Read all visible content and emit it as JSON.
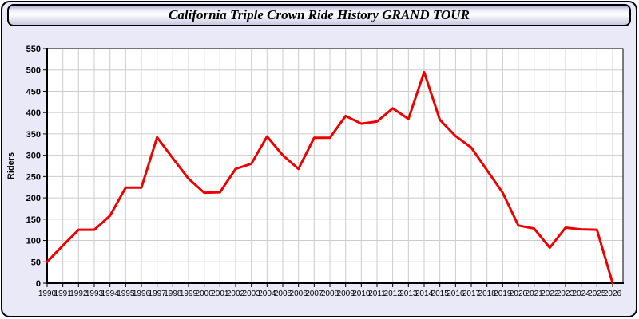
{
  "window": {
    "title": "California Triple Crown Ride History GRAND TOUR"
  },
  "colors": {
    "line": "#ee0000",
    "card_background": "#e9e9f7",
    "plot_background": "#ffffff",
    "gridline": "#cccccc",
    "axis": "#000000"
  },
  "chart_data": {
    "type": "line",
    "title": "California Triple Crown Ride History GRAND TOUR",
    "xlabel": "",
    "ylabel": "Riders",
    "ylim": [
      0,
      550
    ],
    "ytick_step": 50,
    "grid": true,
    "legend": "none",
    "x": [
      1990,
      1991,
      1992,
      1993,
      1994,
      1995,
      1996,
      1997,
      1998,
      1999,
      2000,
      2001,
      2002,
      2003,
      2004,
      2005,
      2006,
      2007,
      2008,
      2009,
      2010,
      2011,
      2012,
      2013,
      2014,
      2015,
      2016,
      2017,
      2018,
      2019,
      2020,
      2021,
      2022,
      2023,
      2024,
      2025,
      2026
    ],
    "series": [
      {
        "name": "Riders",
        "values": [
          50,
          88,
          125,
          125,
          158,
          224,
          224,
          342,
          293,
          245,
          212,
          213,
          268,
          280,
          344,
          300,
          268,
          341,
          341,
          392,
          374,
          379,
          410,
          385,
          495,
          383,
          345,
          318,
          265,
          212,
          135,
          128,
          83,
          130,
          126,
          125,
          0
        ]
      }
    ]
  }
}
